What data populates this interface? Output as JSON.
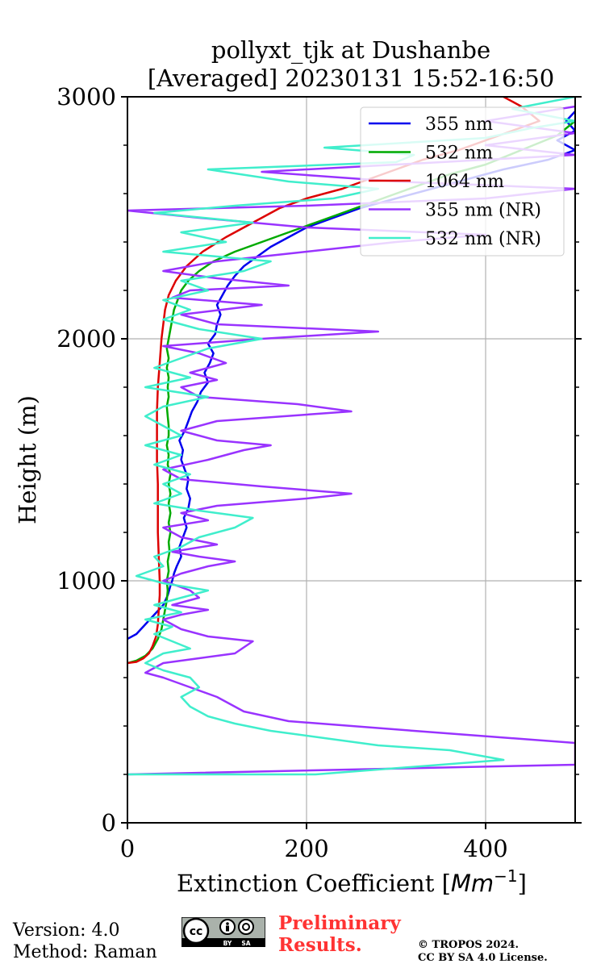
{
  "chart_data": {
    "type": "line",
    "title_line1": "pollyxt_tjk at Dushanbe",
    "title_line2": "[Averaged] 20230131 15:52-16:50",
    "xlabel_text": "Extinction Coefficient [",
    "xlabel_unit": "Mm",
    "xlabel_exp": "−1",
    "xlabel_close": "]",
    "ylabel": "Height (m)",
    "xlim": [
      0,
      500
    ],
    "ylim": [
      0,
      3000
    ],
    "xticks": [
      0,
      200,
      400
    ],
    "yticks": [
      0,
      1000,
      2000,
      3000
    ],
    "xtick_labels": [
      "0",
      "200",
      "400"
    ],
    "ytick_labels": [
      "0",
      "1000",
      "2000",
      "3000"
    ],
    "grid": true,
    "legend_position": "top-right",
    "series": [
      {
        "name": "355 nm",
        "color": "#0000ee",
        "points": [
          [
            0,
            760
          ],
          [
            10,
            780
          ],
          [
            20,
            820
          ],
          [
            30,
            860
          ],
          [
            40,
            900
          ],
          [
            45,
            940
          ],
          [
            48,
            980
          ],
          [
            50,
            1000
          ],
          [
            52,
            1030
          ],
          [
            55,
            1060
          ],
          [
            60,
            1100
          ],
          [
            58,
            1140
          ],
          [
            62,
            1180
          ],
          [
            66,
            1220
          ],
          [
            63,
            1260
          ],
          [
            68,
            1300
          ],
          [
            70,
            1340
          ],
          [
            66,
            1380
          ],
          [
            68,
            1420
          ],
          [
            64,
            1460
          ],
          [
            60,
            1500
          ],
          [
            62,
            1540
          ],
          [
            58,
            1580
          ],
          [
            64,
            1620
          ],
          [
            68,
            1660
          ],
          [
            72,
            1700
          ],
          [
            78,
            1740
          ],
          [
            82,
            1780
          ],
          [
            90,
            1820
          ],
          [
            86,
            1860
          ],
          [
            92,
            1900
          ],
          [
            96,
            1940
          ],
          [
            90,
            1980
          ],
          [
            98,
            2020
          ],
          [
            100,
            2060
          ],
          [
            104,
            2100
          ],
          [
            100,
            2140
          ],
          [
            106,
            2180
          ],
          [
            112,
            2220
          ],
          [
            120,
            2260
          ],
          [
            130,
            2300
          ],
          [
            145,
            2340
          ],
          [
            160,
            2380
          ],
          [
            180,
            2420
          ],
          [
            200,
            2460
          ],
          [
            230,
            2500
          ],
          [
            260,
            2540
          ],
          [
            300,
            2580
          ],
          [
            340,
            2620
          ],
          [
            380,
            2660
          ],
          [
            420,
            2700
          ],
          [
            470,
            2740
          ],
          [
            500,
            2780
          ],
          [
            480,
            2820
          ],
          [
            500,
            2860
          ],
          [
            490,
            2900
          ],
          [
            500,
            2940
          ]
        ]
      },
      {
        "name": "532 nm",
        "color": "#00aa00",
        "points": [
          [
            0,
            660
          ],
          [
            10,
            670
          ],
          [
            20,
            690
          ],
          [
            28,
            720
          ],
          [
            34,
            760
          ],
          [
            38,
            800
          ],
          [
            40,
            840
          ],
          [
            42,
            880
          ],
          [
            44,
            920
          ],
          [
            45,
            960
          ],
          [
            44,
            1000
          ],
          [
            46,
            1040
          ],
          [
            45,
            1080
          ],
          [
            47,
            1120
          ],
          [
            46,
            1160
          ],
          [
            48,
            1200
          ],
          [
            46,
            1240
          ],
          [
            48,
            1280
          ],
          [
            46,
            1320
          ],
          [
            48,
            1360
          ],
          [
            46,
            1400
          ],
          [
            48,
            1440
          ],
          [
            45,
            1480
          ],
          [
            46,
            1520
          ],
          [
            44,
            1560
          ],
          [
            46,
            1600
          ],
          [
            46,
            1640
          ],
          [
            45,
            1680
          ],
          [
            44,
            1720
          ],
          [
            46,
            1760
          ],
          [
            45,
            1800
          ],
          [
            46,
            1840
          ],
          [
            44,
            1880
          ],
          [
            46,
            1920
          ],
          [
            44,
            1960
          ],
          [
            46,
            2000
          ],
          [
            48,
            2040
          ],
          [
            50,
            2080
          ],
          [
            52,
            2120
          ],
          [
            56,
            2160
          ],
          [
            60,
            2200
          ],
          [
            68,
            2240
          ],
          [
            80,
            2280
          ],
          [
            96,
            2320
          ],
          [
            120,
            2360
          ],
          [
            150,
            2400
          ],
          [
            180,
            2440
          ],
          [
            210,
            2480
          ],
          [
            240,
            2520
          ],
          [
            270,
            2560
          ],
          [
            300,
            2600
          ],
          [
            330,
            2640
          ],
          [
            360,
            2680
          ],
          [
            400,
            2720
          ],
          [
            440,
            2780
          ],
          [
            480,
            2840
          ],
          [
            500,
            2900
          ]
        ]
      },
      {
        "name": "1064 nm",
        "color": "#dd0000",
        "points": [
          [
            0,
            660
          ],
          [
            10,
            665
          ],
          [
            18,
            680
          ],
          [
            24,
            700
          ],
          [
            28,
            730
          ],
          [
            32,
            770
          ],
          [
            34,
            820
          ],
          [
            35,
            880
          ],
          [
            36,
            940
          ],
          [
            36,
            1000
          ],
          [
            35,
            1100
          ],
          [
            34,
            1200
          ],
          [
            34,
            1300
          ],
          [
            34,
            1400
          ],
          [
            33,
            1500
          ],
          [
            33,
            1600
          ],
          [
            33,
            1700
          ],
          [
            34,
            1800
          ],
          [
            36,
            1900
          ],
          [
            38,
            2000
          ],
          [
            40,
            2060
          ],
          [
            42,
            2120
          ],
          [
            46,
            2180
          ],
          [
            54,
            2240
          ],
          [
            66,
            2300
          ],
          [
            84,
            2360
          ],
          [
            110,
            2420
          ],
          [
            140,
            2480
          ],
          [
            170,
            2540
          ],
          [
            200,
            2580
          ],
          [
            240,
            2620
          ],
          [
            270,
            2660
          ],
          [
            300,
            2700
          ],
          [
            330,
            2740
          ],
          [
            370,
            2780
          ],
          [
            400,
            2820
          ],
          [
            430,
            2860
          ],
          [
            460,
            2900
          ],
          [
            440,
            2960
          ],
          [
            420,
            3000
          ]
        ]
      },
      {
        "name": "355 nm (NR)",
        "color": "#9933ff",
        "points": [
          [
            0,
            200
          ],
          [
            500,
            240
          ],
          [
            500,
            330
          ],
          [
            320,
            380
          ],
          [
            180,
            420
          ],
          [
            130,
            460
          ],
          [
            100,
            520
          ],
          [
            70,
            560
          ],
          [
            40,
            600
          ],
          [
            20,
            620
          ],
          [
            40,
            660
          ],
          [
            80,
            680
          ],
          [
            120,
            700
          ],
          [
            140,
            750
          ],
          [
            90,
            770
          ],
          [
            60,
            800
          ],
          [
            40,
            840
          ],
          [
            60,
            860
          ],
          [
            90,
            880
          ],
          [
            50,
            900
          ],
          [
            80,
            930
          ],
          [
            70,
            960
          ],
          [
            40,
            1000
          ],
          [
            60,
            1030
          ],
          [
            90,
            1060
          ],
          [
            120,
            1080
          ],
          [
            80,
            1100
          ],
          [
            50,
            1120
          ],
          [
            100,
            1150
          ],
          [
            60,
            1180
          ],
          [
            40,
            1220
          ],
          [
            90,
            1250
          ],
          [
            60,
            1280
          ],
          [
            100,
            1310
          ],
          [
            200,
            1340
          ],
          [
            250,
            1360
          ],
          [
            150,
            1390
          ],
          [
            60,
            1420
          ],
          [
            40,
            1460
          ],
          [
            90,
            1500
          ],
          [
            130,
            1540
          ],
          [
            160,
            1560
          ],
          [
            100,
            1580
          ],
          [
            60,
            1620
          ],
          [
            100,
            1660
          ],
          [
            250,
            1700
          ],
          [
            190,
            1730
          ],
          [
            80,
            1760
          ],
          [
            60,
            1800
          ],
          [
            100,
            1830
          ],
          [
            70,
            1860
          ],
          [
            110,
            1900
          ],
          [
            80,
            1940
          ],
          [
            40,
            1970
          ],
          [
            150,
            2000
          ],
          [
            280,
            2030
          ],
          [
            100,
            2060
          ],
          [
            60,
            2100
          ],
          [
            150,
            2140
          ],
          [
            50,
            2170
          ],
          [
            70,
            2200
          ],
          [
            180,
            2220
          ],
          [
            100,
            2250
          ],
          [
            40,
            2280
          ],
          [
            100,
            2320
          ],
          [
            200,
            2360
          ],
          [
            300,
            2400
          ],
          [
            400,
            2430
          ],
          [
            200,
            2460
          ],
          [
            80,
            2500
          ],
          [
            0,
            2530
          ],
          [
            200,
            2550
          ],
          [
            400,
            2580
          ],
          [
            500,
            2620
          ],
          [
            300,
            2650
          ],
          [
            150,
            2690
          ],
          [
            300,
            2720
          ],
          [
            500,
            2760
          ],
          [
            400,
            2800
          ],
          [
            500,
            2850
          ],
          [
            400,
            2900
          ],
          [
            500,
            2960
          ]
        ]
      },
      {
        "name": "532 nm (NR)",
        "color": "#40eecc",
        "points": [
          [
            0,
            200
          ],
          [
            210,
            200
          ],
          [
            420,
            260
          ],
          [
            360,
            300
          ],
          [
            280,
            320
          ],
          [
            220,
            350
          ],
          [
            160,
            380
          ],
          [
            120,
            410
          ],
          [
            90,
            440
          ],
          [
            70,
            480
          ],
          [
            60,
            520
          ],
          [
            80,
            560
          ],
          [
            70,
            600
          ],
          [
            40,
            630
          ],
          [
            20,
            660
          ],
          [
            40,
            700
          ],
          [
            70,
            720
          ],
          [
            50,
            750
          ],
          [
            30,
            780
          ],
          [
            50,
            810
          ],
          [
            20,
            840
          ],
          [
            60,
            870
          ],
          [
            30,
            900
          ],
          [
            60,
            930
          ],
          [
            90,
            960
          ],
          [
            40,
            990
          ],
          [
            10,
            1020
          ],
          [
            40,
            1060
          ],
          [
            30,
            1100
          ],
          [
            60,
            1140
          ],
          [
            80,
            1180
          ],
          [
            120,
            1220
          ],
          [
            140,
            1260
          ],
          [
            80,
            1290
          ],
          [
            30,
            1320
          ],
          [
            60,
            1360
          ],
          [
            40,
            1400
          ],
          [
            70,
            1440
          ],
          [
            30,
            1480
          ],
          [
            60,
            1520
          ],
          [
            20,
            1560
          ],
          [
            60,
            1600
          ],
          [
            40,
            1640
          ],
          [
            20,
            1680
          ],
          [
            40,
            1720
          ],
          [
            90,
            1760
          ],
          [
            20,
            1800
          ],
          [
            70,
            1840
          ],
          [
            30,
            1880
          ],
          [
            60,
            1920
          ],
          [
            90,
            1960
          ],
          [
            150,
            2000
          ],
          [
            80,
            2040
          ],
          [
            40,
            2080
          ],
          [
            70,
            2120
          ],
          [
            40,
            2160
          ],
          [
            90,
            2200
          ],
          [
            60,
            2240
          ],
          [
            130,
            2280
          ],
          [
            160,
            2320
          ],
          [
            40,
            2360
          ],
          [
            110,
            2400
          ],
          [
            60,
            2440
          ],
          [
            140,
            2480
          ],
          [
            30,
            2520
          ],
          [
            120,
            2550
          ],
          [
            230,
            2580
          ],
          [
            280,
            2620
          ],
          [
            180,
            2650
          ],
          [
            90,
            2700
          ],
          [
            300,
            2730
          ],
          [
            320,
            2760
          ],
          [
            220,
            2790
          ],
          [
            400,
            2830
          ],
          [
            450,
            2870
          ],
          [
            500,
            2900
          ],
          [
            430,
            2950
          ],
          [
            500,
            3000
          ]
        ]
      }
    ]
  },
  "footer": {
    "version": "Version: 4.0",
    "method": "Method: Raman",
    "cc_label": "cc",
    "cc_by": "BY",
    "cc_sa": "SA",
    "prelim_line1": "Preliminary",
    "prelim_line2": "Results.",
    "copyright_line1": "© TROPOS 2024.",
    "copyright_line2": "CC BY SA 4.0 License."
  }
}
